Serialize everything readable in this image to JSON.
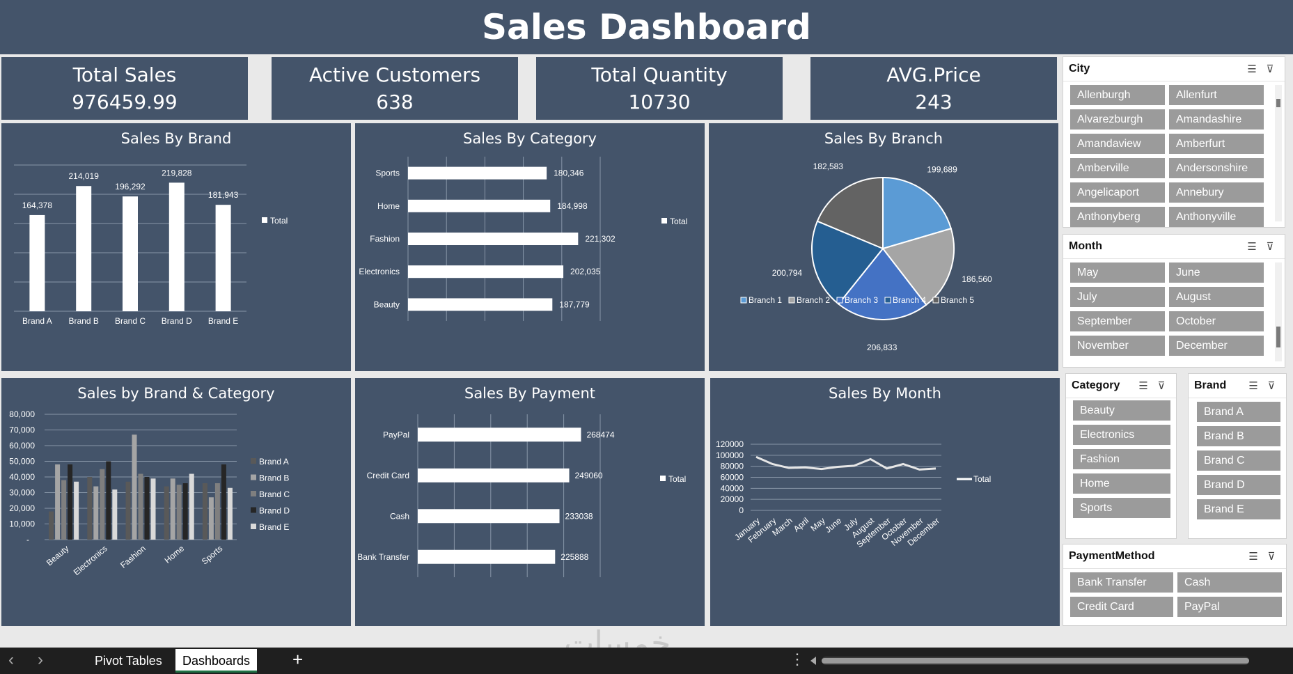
{
  "header": {
    "title": "Sales Dashboard"
  },
  "kpis": [
    {
      "label": "Total Sales",
      "value": "976459.99"
    },
    {
      "label": "Active Customers",
      "value": "638"
    },
    {
      "label": "Total Quantity",
      "value": "10730"
    },
    {
      "label": "AVG.Price",
      "value": "243"
    }
  ],
  "chart_data": [
    {
      "id": "brand",
      "type": "bar",
      "title": "Sales By Brand",
      "categories": [
        "Brand A",
        "Brand B",
        "Brand C",
        "Brand D",
        "Brand E"
      ],
      "values": [
        164378,
        214019,
        196292,
        219828,
        181943
      ],
      "data_labels": [
        "164,378",
        "214,019",
        "196,292",
        "219,828",
        "181,943"
      ],
      "series_name": "Total",
      "legend": "right",
      "grid": true,
      "ylim": [
        0,
        250000
      ]
    },
    {
      "id": "category",
      "type": "bar-horizontal",
      "title": "Sales By Category",
      "categories": [
        "Sports",
        "Home",
        "Fashion",
        "Electronics",
        "Beauty"
      ],
      "values": [
        180346,
        184998,
        221302,
        202035,
        187779
      ],
      "data_labels": [
        "180,346",
        "184,998",
        "221,302",
        "202,035",
        "187,779"
      ],
      "series_name": "Total",
      "legend": "right",
      "grid": true,
      "xlim": [
        0,
        250000
      ]
    },
    {
      "id": "branch",
      "type": "pie",
      "title": "Sales By Branch",
      "categories": [
        "Branch 1",
        "Branch 2",
        "Branch 3",
        "Branch 4",
        "Branch 5"
      ],
      "values": [
        199689,
        186560,
        206833,
        200794,
        182583
      ],
      "data_labels": [
        "199,689",
        "186,560",
        "206,833",
        "200,794",
        "182,583"
      ],
      "colors": [
        "#5b9bd5",
        "#a5a5a5",
        "#4472c4",
        "#255e91",
        "#636363"
      ],
      "legend": "bottom"
    },
    {
      "id": "brandcat",
      "type": "bar",
      "title": "Sales by Brand & Category",
      "categories": [
        "Beauty",
        "Electronics",
        "Fashion",
        "Home",
        "Sports"
      ],
      "series": [
        {
          "name": "Brand A",
          "color": "#595959",
          "values": [
            18000,
            40000,
            37000,
            34000,
            36000
          ]
        },
        {
          "name": "Brand B",
          "color": "#a5a5a5",
          "values": [
            48000,
            34000,
            67000,
            39000,
            27000
          ]
        },
        {
          "name": "Brand C",
          "color": "#7f7f7f",
          "values": [
            38000,
            45000,
            42000,
            35000,
            36000
          ]
        },
        {
          "name": "Brand D",
          "color": "#262626",
          "values": [
            48000,
            50000,
            40000,
            36000,
            48000
          ]
        },
        {
          "name": "Brand E",
          "color": "#d9d9d9",
          "values": [
            37000,
            32000,
            39000,
            42000,
            33000
          ]
        }
      ],
      "yticks": [
        "-",
        "10,000",
        "20,000",
        "30,000",
        "40,000",
        "50,000",
        "60,000",
        "70,000",
        "80,000"
      ],
      "ylim": [
        0,
        80000
      ],
      "legend": "right",
      "grid": true
    },
    {
      "id": "payment",
      "type": "bar-horizontal",
      "title": "Sales By Payment",
      "categories": [
        "PayPal",
        "Credit Card",
        "Cash",
        "Bank Transfer"
      ],
      "values": [
        268474,
        249060,
        233038,
        225888
      ],
      "data_labels": [
        "268474",
        "249060",
        "233038",
        "225888"
      ],
      "series_name": "Total",
      "legend": "right",
      "grid": true,
      "xlim": [
        0,
        300000
      ]
    },
    {
      "id": "month",
      "type": "line",
      "title": "Sales By Month",
      "categories": [
        "January",
        "February",
        "March",
        "April",
        "May",
        "June",
        "July",
        "August",
        "September",
        "October",
        "November",
        "December"
      ],
      "values": [
        97000,
        84000,
        77000,
        78000,
        75000,
        79000,
        81000,
        93000,
        76000,
        84000,
        74000,
        76000
      ],
      "yticks": [
        "0",
        "20000",
        "40000",
        "60000",
        "80000",
        "100000",
        "120000"
      ],
      "ylim": [
        0,
        120000
      ],
      "series_name": "Total",
      "legend": "right",
      "grid": true
    }
  ],
  "slicers": {
    "city": {
      "title": "City",
      "items": [
        "Allenburgh",
        "Allenfurt",
        "Alvarezburgh",
        "Amandashire",
        "Amandaview",
        "Amberfurt",
        "Amberville",
        "Andersonshire",
        "Angelicaport",
        "Annebury",
        "Anthonyberg",
        "Anthonyville"
      ]
    },
    "month": {
      "title": "Month",
      "items": [
        "May",
        "June",
        "July",
        "August",
        "September",
        "October",
        "November",
        "December"
      ]
    },
    "category": {
      "title": "Category",
      "items": [
        "Beauty",
        "Electronics",
        "Fashion",
        "Home",
        "Sports"
      ]
    },
    "brand": {
      "title": "Brand",
      "items": [
        "Brand A",
        "Brand B",
        "Brand C",
        "Brand D",
        "Brand E"
      ]
    },
    "payment": {
      "title": "PaymentMethod",
      "items": [
        "Bank Transfer",
        "Cash",
        "Credit Card",
        "PayPal"
      ]
    }
  },
  "tabs": {
    "sheets": [
      "Pivot Tables",
      "Dashboards"
    ],
    "active": "Dashboards",
    "add_symbol": "+",
    "more_symbol": "⋮",
    "prev_symbol": "‹",
    "next_symbol": "›"
  },
  "watermark": "خمسات",
  "colors": {
    "panel": "#44546a",
    "slicer_button": "#9b9b9b",
    "background": "#e9e9e9"
  }
}
